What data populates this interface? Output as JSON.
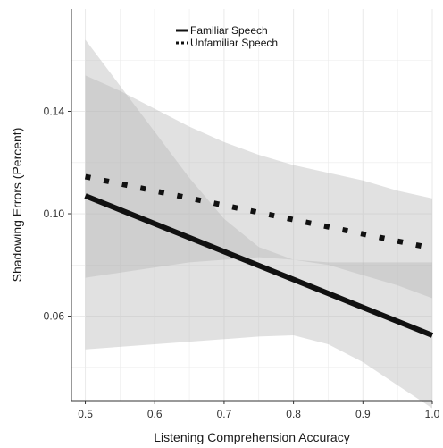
{
  "chart_data": {
    "type": "line",
    "title": "",
    "xlabel": "Listening Comprehension Accuracy",
    "ylabel": "Shadowing Errors (Percent)",
    "xlim": [
      0.48,
      1.0
    ],
    "ylim": [
      0.027,
      0.18
    ],
    "x_ticks": [
      "0.5",
      "0.6",
      "0.7",
      "0.8",
      "0.9",
      "1.0"
    ],
    "y_ticks": [
      "0.06",
      "0.10",
      "0.14"
    ],
    "grid": true,
    "legend_position": "top-center",
    "series": [
      {
        "name": "Familiar Speech",
        "style": "solid",
        "color": "#111111",
        "x": [
          0.5,
          1.0
        ],
        "y": [
          0.107,
          0.0525
        ],
        "ci_x": [
          0.5,
          0.55,
          0.6,
          0.65,
          0.7,
          0.75,
          0.8,
          0.85,
          0.9,
          0.95,
          1.0
        ],
        "ci_upper": [
          0.168,
          0.15,
          0.132,
          0.114,
          0.098,
          0.087,
          0.082,
          0.081,
          0.081,
          0.081,
          0.081
        ],
        "ci_lower": [
          0.047,
          0.048,
          0.049,
          0.05,
          0.051,
          0.052,
          0.0525,
          0.049,
          0.042,
          0.033,
          0.024
        ]
      },
      {
        "name": "Unfamiliar Speech",
        "style": "dotted",
        "color": "#111111",
        "x": [
          0.5,
          1.0
        ],
        "y": [
          0.1145,
          0.0865
        ],
        "ci_x": [
          0.5,
          0.55,
          0.6,
          0.65,
          0.7,
          0.75,
          0.8,
          0.85,
          0.9,
          0.95,
          1.0
        ],
        "ci_upper": [
          0.154,
          0.148,
          0.141,
          0.134,
          0.128,
          0.123,
          0.119,
          0.116,
          0.113,
          0.109,
          0.106
        ],
        "ci_lower": [
          0.075,
          0.077,
          0.079,
          0.081,
          0.082,
          0.083,
          0.082,
          0.08,
          0.076,
          0.072,
          0.067
        ]
      }
    ]
  },
  "colors": {
    "panel_background": "#ffffff",
    "grid": "#ebebeb",
    "ribbon": "#b5b5b5",
    "axis_line": "#333333"
  }
}
